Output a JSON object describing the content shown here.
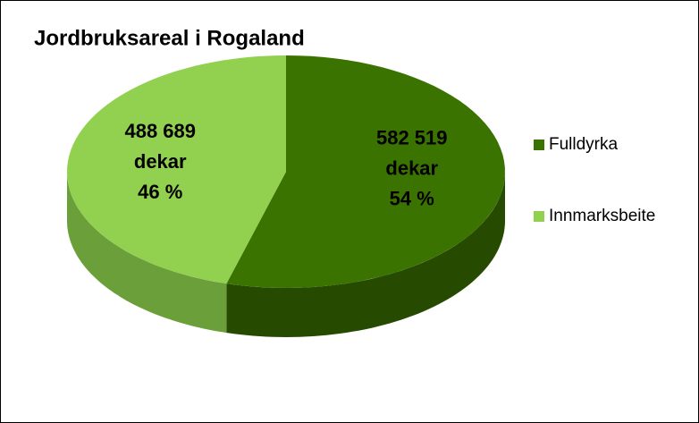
{
  "chart_data": {
    "type": "pie",
    "title": "Jordbruksareal i Rogaland",
    "categories": [
      "Fulldyrka",
      "Innmarksbeite"
    ],
    "values": [
      582519,
      488689
    ],
    "value_labels": [
      "582 519",
      "488 689"
    ],
    "unit": "dekar",
    "percents": [
      54,
      46
    ],
    "percent_labels": [
      "54  %",
      "46 %"
    ],
    "colors": [
      "#3b7300",
      "#92d050"
    ],
    "side_colors": [
      "#254a00",
      "#6a9f3a"
    ],
    "legend": "right"
  }
}
